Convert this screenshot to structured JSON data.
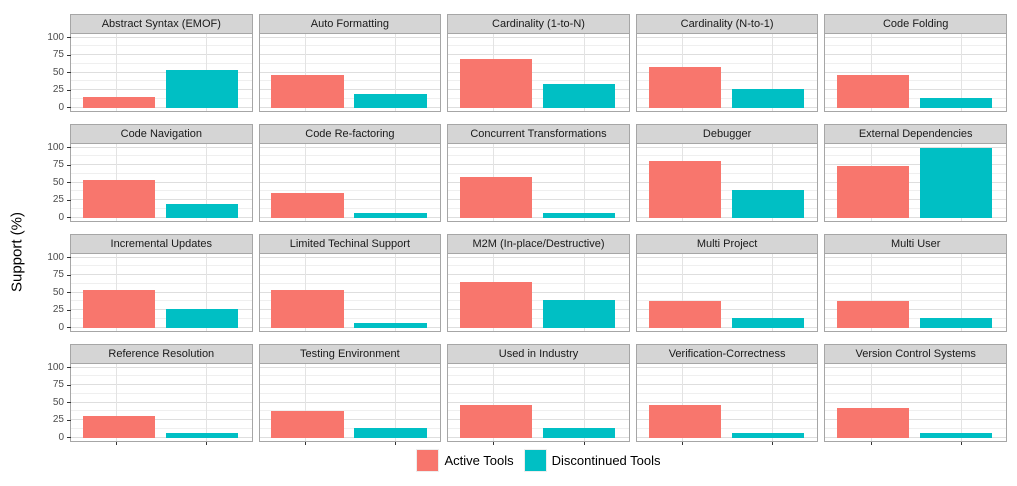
{
  "figure": {
    "ylabel": "Support (%)",
    "yticks": [
      0,
      25,
      50,
      75,
      100
    ],
    "colors": {
      "active": "#F8766D",
      "discontinued": "#00BFC4",
      "strip_background": "#D5D5D5",
      "panel_border": "#A6A6A6",
      "grid_major": "#DEDEDE",
      "grid_minor": "#EFEFEF"
    }
  },
  "legend": [
    {
      "label": "Active Tools",
      "color": "#F8766D"
    },
    {
      "label": "Discontinued Tools",
      "color": "#00BFC4"
    }
  ],
  "chart_data": {
    "type": "bar",
    "faceted": true,
    "title": "",
    "ylabel": "Support (%)",
    "ylim": [
      0,
      100
    ],
    "yticks": [
      0,
      25,
      50,
      75,
      100
    ],
    "grid": true,
    "legend_position": "bottom",
    "series_names": [
      "Active Tools",
      "Discontinued Tools"
    ],
    "facets": [
      {
        "title": "Abstract Syntax (EMOF)",
        "values": [
          15.4,
          53.3
        ]
      },
      {
        "title": "Auto Formatting",
        "values": [
          46.2,
          20.0
        ]
      },
      {
        "title": "Cardinality (1-to-N)",
        "values": [
          69.2,
          33.3
        ]
      },
      {
        "title": "Cardinality (N-to-1)",
        "values": [
          57.7,
          26.7
        ]
      },
      {
        "title": "Code Folding",
        "values": [
          46.2,
          13.3
        ]
      },
      {
        "title": "Code Navigation",
        "values": [
          53.8,
          20.0
        ]
      },
      {
        "title": "Code Re-factoring",
        "values": [
          34.6,
          6.7
        ]
      },
      {
        "title": "Concurrent Transformations",
        "values": [
          57.7,
          6.7
        ]
      },
      {
        "title": "Debugger",
        "values": [
          80.8,
          40.0
        ]
      },
      {
        "title": "External Dependencies",
        "values": [
          73.1,
          100.0
        ]
      },
      {
        "title": "Incremental Updates",
        "values": [
          53.8,
          26.7
        ]
      },
      {
        "title": "Limited Techinal Support",
        "values": [
          53.8,
          6.7
        ]
      },
      {
        "title": "M2M (In-place/Destructive)",
        "values": [
          65.4,
          40.0
        ]
      },
      {
        "title": "Multi Project",
        "values": [
          38.5,
          13.3
        ]
      },
      {
        "title": "Multi User",
        "values": [
          38.5,
          13.3
        ]
      },
      {
        "title": "Reference Resolution",
        "values": [
          30.8,
          6.7
        ]
      },
      {
        "title": "Testing Environment",
        "values": [
          38.5,
          13.3
        ]
      },
      {
        "title": "Used in Industry",
        "values": [
          46.2,
          13.3
        ]
      },
      {
        "title": "Verification-Correctness",
        "values": [
          46.2,
          6.7
        ]
      },
      {
        "title": "Version Control Systems",
        "values": [
          42.3,
          6.7
        ]
      }
    ]
  }
}
